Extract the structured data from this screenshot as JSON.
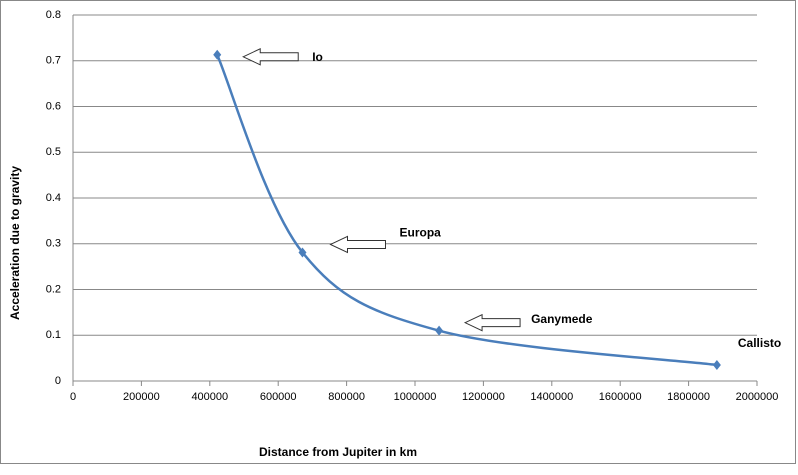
{
  "chart_data": {
    "type": "scatter",
    "x_label": "Distance from Jupiter in km",
    "y_label": "Acceleration due to gravity",
    "series": [
      {
        "color": "#4a7ebb",
        "x": [
          421700,
          671034,
          1070412,
          1882709
        ],
        "values": [
          0.713,
          0.281,
          0.11,
          0.035
        ],
        "point_labels": [
          "Io",
          "Europa",
          "Ganymede",
          "Callisto"
        ]
      }
    ],
    "xlim": [
      0,
      2000000
    ],
    "xticks": [
      0,
      200000,
      400000,
      600000,
      800000,
      1000000,
      1200000,
      1400000,
      1600000,
      1800000,
      2000000
    ],
    "ylim": [
      0,
      0.8
    ],
    "yticks": [
      0,
      0.1,
      0.2,
      0.3,
      0.4,
      0.5,
      0.6,
      0.7,
      0.8
    ],
    "grid": true,
    "smooth": true
  }
}
